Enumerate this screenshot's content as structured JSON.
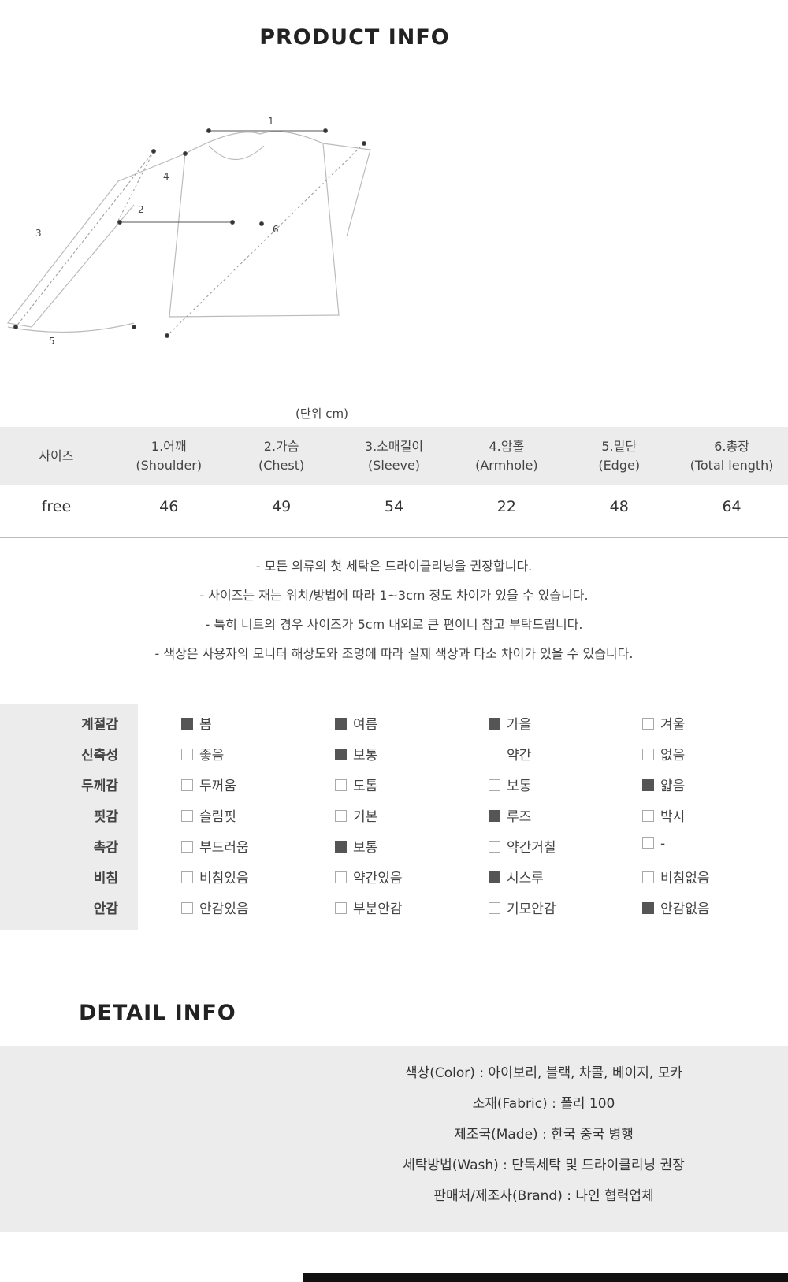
{
  "header": {
    "title": "PRODUCT INFO"
  },
  "diagram": {
    "labels": [
      "1",
      "2",
      "3",
      "4",
      "5",
      "6"
    ]
  },
  "size_table": {
    "unit": "(단위 cm)",
    "headers": [
      {
        "name": "사이즈"
      },
      {
        "name": "1.어깨",
        "en": "(Shoulder)"
      },
      {
        "name": "2.가슴",
        "en": "(Chest)"
      },
      {
        "name": "3.소매길이",
        "en": "(Sleeve)"
      },
      {
        "name": "4.암홀",
        "en": "(Armhole)"
      },
      {
        "name": "5.밑단",
        "en": "(Edge)"
      },
      {
        "name": "6.총장",
        "en": "(Total length)"
      }
    ],
    "rows": [
      [
        "free",
        "46",
        "49",
        "54",
        "22",
        "48",
        "64"
      ]
    ]
  },
  "notes": [
    "- 모든 의류의 첫 세탁은 드라이클리닝을 권장합니다.",
    "- 사이즈는 재는 위치/방법에 따라 1~3cm 정도 차이가 있을 수 있습니다.",
    "- 특히 니트의 경우 사이즈가 5cm 내외로 큰 편이니 참고 부탁드립니다.",
    "- 색상은 사용자의 모니터 해상도와 조명에 따라 실제 색상과 다소 차이가 있을 수 있습니다."
  ],
  "attributes": [
    {
      "label": "계절감",
      "options": [
        "봄",
        "여름",
        "가을",
        "겨울"
      ],
      "checked": [
        true,
        true,
        true,
        false
      ]
    },
    {
      "label": "신축성",
      "options": [
        "좋음",
        "보통",
        "약간",
        "없음"
      ],
      "checked": [
        false,
        true,
        false,
        false
      ]
    },
    {
      "label": "두께감",
      "options": [
        "두꺼움",
        "도톰",
        "보통",
        "얇음"
      ],
      "checked": [
        false,
        false,
        false,
        true
      ]
    },
    {
      "label": "핏감",
      "options": [
        "슬림핏",
        "기본",
        "루즈",
        "박시"
      ],
      "checked": [
        false,
        false,
        true,
        false
      ]
    },
    {
      "label": "촉감",
      "options": [
        "부드러움",
        "보통",
        "약간거칠",
        "-"
      ],
      "checked": [
        false,
        true,
        false,
        false
      ]
    },
    {
      "label": "비침",
      "options": [
        "비침있음",
        "약간있음",
        "시스루",
        "비침없음"
      ],
      "checked": [
        false,
        false,
        true,
        false
      ]
    },
    {
      "label": "안감",
      "options": [
        "안감있음",
        "부분안감",
        "기모안감",
        "안감없음"
      ],
      "checked": [
        false,
        false,
        false,
        true
      ]
    }
  ],
  "detail": {
    "title": "DETAIL INFO",
    "lines": [
      "색상(Color) : 아이보리, 블랙, 차콜, 베이지, 모카",
      "소재(Fabric) : 폴리 100",
      "제조국(Made) : 한국 중국 병행",
      "세탁방법(Wash) : 단독세탁 및 드라이클리닝 권장",
      "판매처/제조사(Brand) : 나인 협력업체"
    ]
  }
}
